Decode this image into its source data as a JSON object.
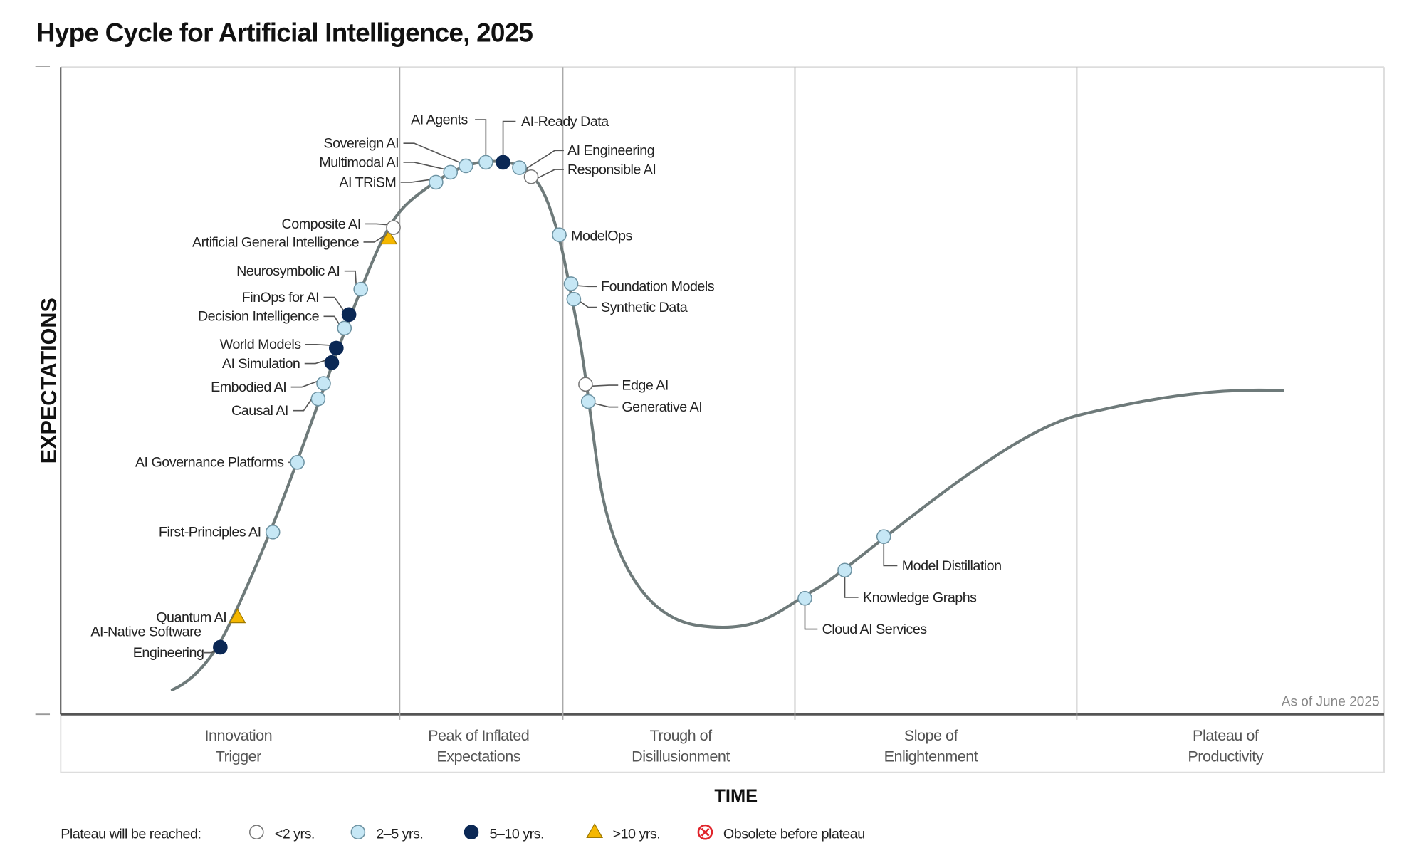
{
  "title": "Hype Cycle for Artificial Intelligence, 2025",
  "y_axis_label": "EXPECTATIONS",
  "x_axis_label": "TIME",
  "as_of": "As of June 2025",
  "phases": [
    {
      "line1": "Innovation",
      "line2": "Trigger"
    },
    {
      "line1": "Peak of Inflated",
      "line2": "Expectations"
    },
    {
      "line1": "Trough of",
      "line2": "Disillusionment"
    },
    {
      "line1": "Slope of",
      "line2": "Enlightenment"
    },
    {
      "line1": "Plateau of",
      "line2": "Productivity"
    }
  ],
  "colors": {
    "curve": "#6e7a7a",
    "lt2": "#ffffff",
    "2to5": "#c6e7f5",
    "5to10": "#0b2855",
    "gt10": "#f5b700",
    "obsolete": "#e0242b"
  },
  "legend": {
    "title": "Plateau will be reached:",
    "items": [
      {
        "key": "lt2",
        "shape": "circle",
        "label": "<2 yrs."
      },
      {
        "key": "2to5",
        "shape": "circle",
        "label": "2–5 yrs."
      },
      {
        "key": "5to10",
        "shape": "circle",
        "label": "5–10 yrs."
      },
      {
        "key": "gt10",
        "shape": "triangle",
        "label": ">10 yrs."
      },
      {
        "key": "obsolete",
        "shape": "circle-x",
        "label": "Obsolete before plateau"
      }
    ]
  },
  "technologies": [
    {
      "name": "AI-Native Software Engineering",
      "plateau": "5to10",
      "phase": "Innovation Trigger"
    },
    {
      "name": "Quantum AI",
      "plateau": "gt10",
      "phase": "Innovation Trigger"
    },
    {
      "name": "First-Principles AI",
      "plateau": "2to5",
      "phase": "Innovation Trigger"
    },
    {
      "name": "AI Governance Platforms",
      "plateau": "2to5",
      "phase": "Innovation Trigger"
    },
    {
      "name": "Causal AI",
      "plateau": "2to5",
      "phase": "Innovation Trigger"
    },
    {
      "name": "Embodied AI",
      "plateau": "2to5",
      "phase": "Innovation Trigger"
    },
    {
      "name": "AI Simulation",
      "plateau": "5to10",
      "phase": "Innovation Trigger"
    },
    {
      "name": "World Models",
      "plateau": "5to10",
      "phase": "Innovation Trigger"
    },
    {
      "name": "Decision Intelligence",
      "plateau": "2to5",
      "phase": "Innovation Trigger"
    },
    {
      "name": "FinOps for AI",
      "plateau": "5to10",
      "phase": "Innovation Trigger"
    },
    {
      "name": "Neurosymbolic AI",
      "plateau": "2to5",
      "phase": "Innovation Trigger"
    },
    {
      "name": "Artificial General Intelligence",
      "plateau": "gt10",
      "phase": "Innovation Trigger"
    },
    {
      "name": "Composite AI",
      "plateau": "lt2",
      "phase": "Innovation Trigger"
    },
    {
      "name": "AI TRiSM",
      "plateau": "2to5",
      "phase": "Peak of Inflated Expectations"
    },
    {
      "name": "Multimodal AI",
      "plateau": "2to5",
      "phase": "Peak of Inflated Expectations"
    },
    {
      "name": "Sovereign AI",
      "plateau": "2to5",
      "phase": "Peak of Inflated Expectations"
    },
    {
      "name": "AI Agents",
      "plateau": "2to5",
      "phase": "Peak of Inflated Expectations"
    },
    {
      "name": "AI-Ready Data",
      "plateau": "5to10",
      "phase": "Peak of Inflated Expectations"
    },
    {
      "name": "AI Engineering",
      "plateau": "2to5",
      "phase": "Peak of Inflated Expectations"
    },
    {
      "name": "Responsible AI",
      "plateau": "lt2",
      "phase": "Peak of Inflated Expectations"
    },
    {
      "name": "ModelOps",
      "plateau": "2to5",
      "phase": "Peak of Inflated Expectations"
    },
    {
      "name": "Foundation Models",
      "plateau": "2to5",
      "phase": "Trough of Disillusionment"
    },
    {
      "name": "Synthetic Data",
      "plateau": "2to5",
      "phase": "Trough of Disillusionment"
    },
    {
      "name": "Edge AI",
      "plateau": "lt2",
      "phase": "Trough of Disillusionment"
    },
    {
      "name": "Generative AI",
      "plateau": "2to5",
      "phase": "Trough of Disillusionment"
    },
    {
      "name": "Cloud AI Services",
      "plateau": "2to5",
      "phase": "Slope of Enlightenment"
    },
    {
      "name": "Knowledge Graphs",
      "plateau": "2to5",
      "phase": "Slope of Enlightenment"
    },
    {
      "name": "Model Distillation",
      "plateau": "2to5",
      "phase": "Slope of Enlightenment"
    }
  ]
}
